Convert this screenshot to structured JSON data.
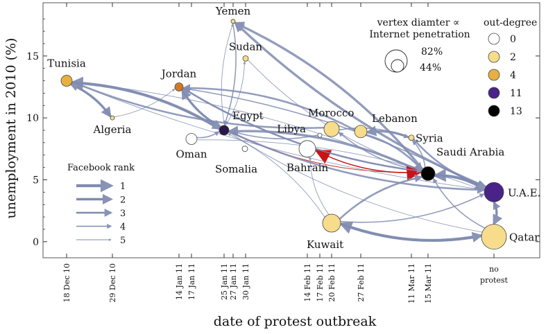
{
  "chart_data": {
    "type": "scatter",
    "xlabel": "date of protest outbreak",
    "ylabel": "unemployment in 2010 (%)",
    "ylim": [
      -1.3,
      19.3
    ],
    "yticks": [
      0,
      5,
      10,
      15
    ],
    "x_tick_labels": [
      "18 Dec 10",
      "29 Dec 10",
      "14 Jan 11",
      "17 Jan 11",
      "25 Jan 11",
      "27 Jan 11",
      "30 Jan 11",
      "14 Feb 11",
      "17 Feb 11",
      "20 Feb 11",
      "27 Feb 11",
      "11 Mar 11",
      "15 Mar 11"
    ],
    "no_protest_label": [
      "no",
      "protest"
    ],
    "node_color_scale": [
      {
        "degree": "0",
        "color": "#ffffff"
      },
      {
        "degree": "2",
        "color": "#f7dc8c"
      },
      {
        "degree": "4",
        "color": "#e8b040"
      },
      {
        "degree": "11",
        "color": "#4a2388"
      },
      {
        "degree": "13",
        "color": "#000000"
      }
    ],
    "nodes": [
      {
        "id": "Tunisia",
        "x": "18 Dec 10",
        "y": 13.0,
        "outdegree": 4,
        "color": "#e8b040",
        "label": "Tunisia"
      },
      {
        "id": "Algeria",
        "x": "29 Dec 10",
        "y": 10.0,
        "outdegree": 2,
        "color": "#f7dc8c",
        "label": "Algeria"
      },
      {
        "id": "Jordan",
        "x": "14 Jan 11",
        "y": 12.5,
        "outdegree": 4,
        "color": "#d07a28",
        "label": "Jordan"
      },
      {
        "id": "Oman",
        "x": "17 Jan 11",
        "y": 8.3,
        "outdegree": 0,
        "color": "#ffffff",
        "label": "Oman"
      },
      {
        "id": "Egypt",
        "x": "25 Jan 11",
        "y": 9.0,
        "outdegree": 11,
        "color": "#2a1848",
        "label": "Egypt"
      },
      {
        "id": "Yemen",
        "x": "27 Jan 11",
        "y": 17.8,
        "outdegree": 2,
        "color": "#f7dc8c",
        "label": "Yemen"
      },
      {
        "id": "Sudan",
        "x": "30 Jan 11",
        "y": 14.8,
        "outdegree": 2,
        "color": "#f7dc8c",
        "label": "Sudan"
      },
      {
        "id": "Bahrain",
        "x": "14 Feb 11",
        "y": 7.5,
        "outdegree": 0,
        "color": "#ffffff",
        "label": "Bahrain"
      },
      {
        "id": "Libya",
        "x": "17 Feb 11",
        "y": 8.6,
        "outdegree": 0,
        "color": "#ffffff",
        "label": "Libya"
      },
      {
        "id": "Somalia",
        "x": "17 Feb 11",
        "y": 7.5,
        "outdegree": 0,
        "color": "#ffffff",
        "label": "Somalia"
      },
      {
        "id": "Morocco",
        "x": "20 Feb 11",
        "y": 9.1,
        "outdegree": 2,
        "color": "#f7dc8c",
        "label": "Morocco"
      },
      {
        "id": "Kuwait",
        "x": "20 Feb 11",
        "y": 1.5,
        "outdegree": 2,
        "color": "#f7dc8c",
        "label": "Kuwait"
      },
      {
        "id": "Lebanon",
        "x": "27 Feb 11",
        "y": 8.9,
        "outdegree": 2,
        "color": "#f7dc8c",
        "label": "Lebanon"
      },
      {
        "id": "Syria",
        "x": "11 Mar 11",
        "y": 8.4,
        "outdegree": 2,
        "color": "#f7dc8c",
        "label": "Syria"
      },
      {
        "id": "Saudi Arabia",
        "x": "15 Mar 11",
        "y": 5.5,
        "outdegree": 13,
        "color": "#000000",
        "label": "Saudi Arabia"
      },
      {
        "id": "UAE",
        "x": "no protest",
        "y": 4.0,
        "outdegree": 11,
        "color": "#4a2388",
        "label": "U.A.E."
      },
      {
        "id": "Qatar",
        "x": "no protest",
        "y": 0.4,
        "outdegree": 2,
        "color": "#f7dc8c",
        "label": "Qatar"
      }
    ],
    "edges": [
      {
        "from": "Egypt",
        "to": "Tunisia",
        "rank": 1
      },
      {
        "from": "Tunisia",
        "to": "Algeria",
        "rank": 2
      },
      {
        "from": "Algeria",
        "to": "Tunisia",
        "rank": 3
      },
      {
        "from": "Egypt",
        "to": "Jordan",
        "rank": 2
      },
      {
        "from": "Jordan",
        "to": "Egypt",
        "rank": 3
      },
      {
        "from": "Yemen",
        "to": "Egypt",
        "rank": 4
      },
      {
        "from": "Egypt",
        "to": "Sudan",
        "rank": 5
      },
      {
        "from": "Egypt",
        "to": "Yemen",
        "rank": 5
      },
      {
        "from": "Saudi Arabia",
        "to": "Yemen",
        "rank": 2
      },
      {
        "from": "UAE",
        "to": "Yemen",
        "rank": 2
      },
      {
        "from": "Saudi Arabia",
        "to": "Egypt",
        "rank": 2
      },
      {
        "from": "Morocco",
        "to": "Tunisia",
        "rank": 3
      },
      {
        "from": "Lebanon",
        "to": "Jordan",
        "rank": 3
      },
      {
        "from": "Saudi Arabia",
        "to": "Jordan",
        "rank": 3
      },
      {
        "from": "Syria",
        "to": "Lebanon",
        "rank": 2
      },
      {
        "from": "Saudi Arabia",
        "to": "Morocco",
        "rank": 4
      },
      {
        "from": "Bahrain",
        "to": "Saudi Arabia",
        "rank": 1,
        "highlight": true
      },
      {
        "from": "Saudi Arabia",
        "to": "Bahrain",
        "rank": 1,
        "highlight": true
      },
      {
        "from": "Egypt",
        "to": "Saudi Arabia",
        "rank": 5,
        "highlight": true
      },
      {
        "from": "Kuwait",
        "to": "Saudi Arabia",
        "rank": 3
      },
      {
        "from": "Kuwait",
        "to": "UAE",
        "rank": 4
      },
      {
        "from": "Kuwait",
        "to": "Bahrain",
        "rank": 5
      },
      {
        "from": "Kuwait",
        "to": "Egypt",
        "rank": 5
      },
      {
        "from": "Qatar",
        "to": "Kuwait",
        "rank": 1
      },
      {
        "from": "Kuwait",
        "to": "Qatar",
        "rank": 2
      },
      {
        "from": "Qatar",
        "to": "Egypt",
        "rank": 5
      },
      {
        "from": "Qatar",
        "to": "UAE",
        "rank": 3
      },
      {
        "from": "UAE",
        "to": "Qatar",
        "rank": 2
      },
      {
        "from": "UAE",
        "to": "Saudi Arabia",
        "rank": 1
      },
      {
        "from": "Saudi Arabia",
        "to": "UAE",
        "rank": 2
      },
      {
        "from": "Egypt",
        "to": "UAE",
        "rank": 3
      },
      {
        "from": "Jordan",
        "to": "UAE",
        "rank": 4
      },
      {
        "from": "Tunisia",
        "to": "UAE",
        "rank": 5
      },
      {
        "from": "Oman",
        "to": "UAE",
        "rank": 5
      },
      {
        "from": "Syria",
        "to": "UAE",
        "rank": 3
      },
      {
        "from": "Lebanon",
        "to": "Saudi Arabia",
        "rank": 3
      },
      {
        "from": "Algeria",
        "to": "Jordan",
        "rank": 5
      },
      {
        "from": "Tunisia",
        "to": "Egypt",
        "rank": 3
      },
      {
        "from": "Oman",
        "to": "Egypt",
        "rank": 4
      },
      {
        "from": "Libya",
        "to": "Egypt",
        "rank": 4
      },
      {
        "from": "Sudan",
        "to": "Saudi Arabia",
        "rank": 5
      },
      {
        "from": "Tunisia",
        "to": "Saudi Arabia",
        "rank": 5
      },
      {
        "from": "Jordan",
        "to": "Saudi Arabia",
        "rank": 4
      },
      {
        "from": "Morocco",
        "to": "Syria",
        "rank": 4
      },
      {
        "from": "Saudi Arabia",
        "to": "Syria",
        "rank": 4
      },
      {
        "from": "Qatar",
        "to": "Saudi Arabia",
        "rank": 4
      }
    ],
    "legend_facebook": {
      "title": "Facebook rank",
      "ranks": [
        "1",
        "2",
        "3",
        "4",
        "5"
      ]
    },
    "legend_size": {
      "title_line1": "vertex diamter ∝",
      "title_line2": "Internet penetration",
      "values": [
        "82%",
        "44%"
      ]
    },
    "legend_color": {
      "title": "out-degree"
    }
  }
}
